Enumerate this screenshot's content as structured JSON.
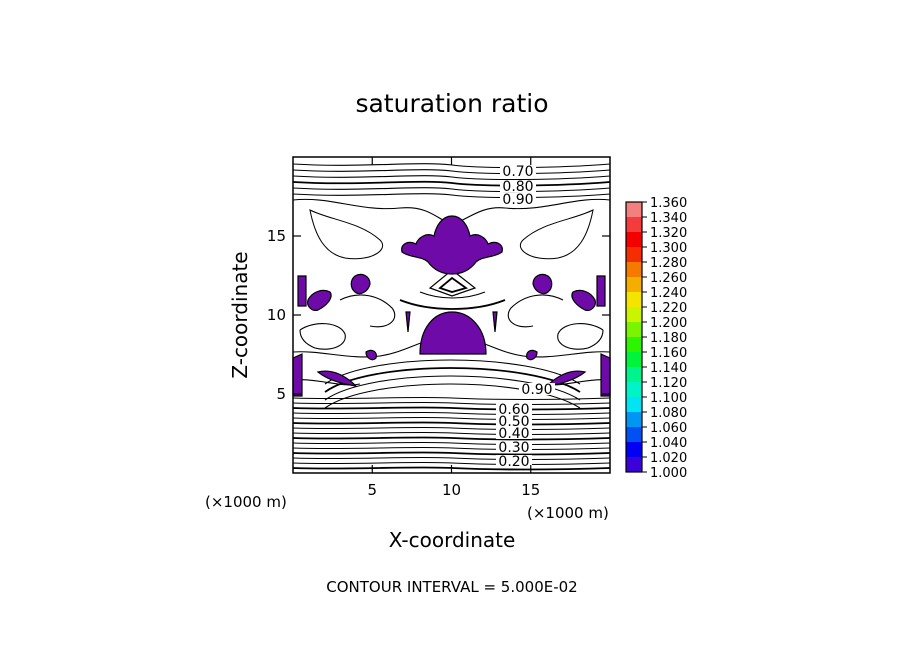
{
  "chart_data": {
    "type": "heatmap",
    "subtype": "filled-contour",
    "title": "saturation ratio",
    "xlabel": "X-coordinate",
    "ylabel": "Z-coordinate",
    "x_unit": "(×1000 m)",
    "y_unit": "(×1000 m)",
    "xlim": [
      0,
      20
    ],
    "ylim": [
      0,
      20
    ],
    "x_ticks": [
      5,
      10,
      15
    ],
    "y_ticks": [
      5,
      10,
      15
    ],
    "contour_interval_text": "CONTOUR INTERVAL = 5.000E-02",
    "contour_labels": [
      "0.70",
      "0.80",
      "0.90",
      "0.90",
      "0.60",
      "0.50",
      "0.40",
      "0.30",
      "0.20"
    ],
    "colorbar": {
      "levels": [
        "1.360",
        "1.340",
        "1.320",
        "1.300",
        "1.280",
        "1.260",
        "1.240",
        "1.220",
        "1.200",
        "1.180",
        "1.160",
        "1.140",
        "1.120",
        "1.100",
        "1.080",
        "1.060",
        "1.040",
        "1.020",
        "1.000"
      ],
      "colors": [
        "#f47f7f",
        "#f43c3c",
        "#f40000",
        "#f42e00",
        "#f47a00",
        "#f4ae00",
        "#f4e400",
        "#cbf400",
        "#7af400",
        "#2ef400",
        "#00f43c",
        "#00f48c",
        "#00f4c8",
        "#00e4f4",
        "#0096f4",
        "#0050f4",
        "#0000f4",
        "#3c00d8",
        "#6e0aa8"
      ]
    },
    "fill_color": "#6e0aa8",
    "grid": false
  }
}
